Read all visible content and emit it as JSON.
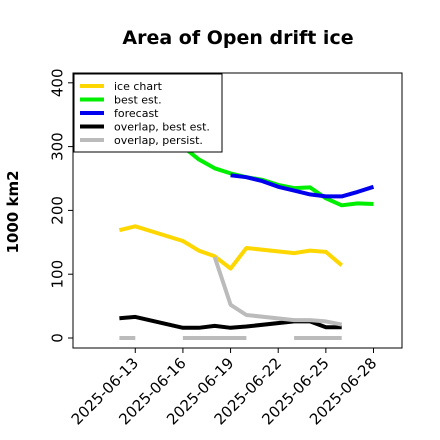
{
  "chart_data": {
    "type": "line",
    "title": "Area of Open drift ice",
    "ylabel": "1000 km2",
    "xlabel": "",
    "ylim": [
      -10,
      420
    ],
    "xlim": [
      "2025-06-11",
      "2025-06-28"
    ],
    "yticks": [
      0,
      100,
      200,
      300,
      400
    ],
    "xticks": [
      {
        "date": "2025-06-13",
        "label": "2025-06-13",
        "color": "#000000"
      },
      {
        "date": "2025-06-16",
        "label": "2025-06-16",
        "color": "#000000"
      },
      {
        "date": "2025-06-19",
        "label": "2025-06-19",
        "color": "#228B22"
      },
      {
        "date": "2025-06-22",
        "label": "2025-06-22",
        "color": "#000000"
      },
      {
        "date": "2025-06-25",
        "label": "2025-06-25",
        "color": "#000000"
      },
      {
        "date": "2025-06-28",
        "label": "2025-06-28",
        "color": "#000000"
      }
    ],
    "legend_position": "top-left",
    "series": [
      {
        "name": "ice chart",
        "color": "#FFD700",
        "segments": [
          [
            {
              "x": "2025-06-12",
              "y": 169
            },
            {
              "x": "2025-06-13",
              "y": 175
            },
            {
              "x": "2025-06-16",
              "y": 152
            },
            {
              "x": "2025-06-17",
              "y": 137
            },
            {
              "x": "2025-06-18",
              "y": 128
            },
            {
              "x": "2025-06-19",
              "y": 109
            },
            {
              "x": "2025-06-20",
              "y": 141
            },
            {
              "x": "2025-06-23",
              "y": 133
            },
            {
              "x": "2025-06-24",
              "y": 137
            },
            {
              "x": "2025-06-25",
              "y": 135
            },
            {
              "x": "2025-06-26",
              "y": 114
            }
          ]
        ]
      },
      {
        "name": "best est.",
        "color": "#00EE00",
        "segments": [
          [
            {
              "x": "2025-06-16",
              "y": 300
            },
            {
              "x": "2025-06-17",
              "y": 280
            },
            {
              "x": "2025-06-18",
              "y": 266
            },
            {
              "x": "2025-06-19",
              "y": 258
            },
            {
              "x": "2025-06-20",
              "y": 252
            },
            {
              "x": "2025-06-21",
              "y": 248
            },
            {
              "x": "2025-06-22",
              "y": 240
            },
            {
              "x": "2025-06-23",
              "y": 235
            },
            {
              "x": "2025-06-24",
              "y": 236
            },
            {
              "x": "2025-06-25",
              "y": 219
            },
            {
              "x": "2025-06-26",
              "y": 208
            },
            {
              "x": "2025-06-27",
              "y": 211
            },
            {
              "x": "2025-06-28",
              "y": 210
            }
          ]
        ]
      },
      {
        "name": "forecast",
        "color": "#0000EE",
        "segments": [
          [
            {
              "x": "2025-06-19",
              "y": 255
            },
            {
              "x": "2025-06-20",
              "y": 252
            },
            {
              "x": "2025-06-21",
              "y": 246
            },
            {
              "x": "2025-06-22",
              "y": 237
            },
            {
              "x": "2025-06-23",
              "y": 231
            },
            {
              "x": "2025-06-24",
              "y": 225
            },
            {
              "x": "2025-06-25",
              "y": 222
            },
            {
              "x": "2025-06-26",
              "y": 222
            },
            {
              "x": "2025-06-27",
              "y": 229
            },
            {
              "x": "2025-06-28",
              "y": 237
            }
          ]
        ]
      },
      {
        "name": "overlap, best est.",
        "color": "#000000",
        "segments": [
          [
            {
              "x": "2025-06-12",
              "y": 31
            },
            {
              "x": "2025-06-13",
              "y": 33
            },
            {
              "x": "2025-06-16",
              "y": 16
            },
            {
              "x": "2025-06-17",
              "y": 16
            },
            {
              "x": "2025-06-18",
              "y": 19
            },
            {
              "x": "2025-06-19",
              "y": 16
            },
            {
              "x": "2025-06-20",
              "y": 18
            },
            {
              "x": "2025-06-23",
              "y": 26
            },
            {
              "x": "2025-06-24",
              "y": 26
            },
            {
              "x": "2025-06-25",
              "y": 17
            },
            {
              "x": "2025-06-26",
              "y": 17
            }
          ]
        ]
      },
      {
        "name": "overlap, persist.",
        "color": "#BBBBBB",
        "segments": [
          [
            {
              "x": "2025-06-12",
              "y": 0
            },
            {
              "x": "2025-06-13",
              "y": 0
            }
          ],
          [
            {
              "x": "2025-06-16",
              "y": 0
            },
            {
              "x": "2025-06-20",
              "y": 0
            }
          ],
          [
            {
              "x": "2025-06-23",
              "y": 0
            },
            {
              "x": "2025-06-26",
              "y": 0
            }
          ],
          [
            {
              "x": "2025-06-18",
              "y": 127
            },
            {
              "x": "2025-06-19",
              "y": 52
            },
            {
              "x": "2025-06-20",
              "y": 36
            },
            {
              "x": "2025-06-23",
              "y": 28
            },
            {
              "x": "2025-06-24",
              "y": 28
            },
            {
              "x": "2025-06-25",
              "y": 26
            },
            {
              "x": "2025-06-26",
              "y": 21
            }
          ]
        ]
      }
    ]
  }
}
